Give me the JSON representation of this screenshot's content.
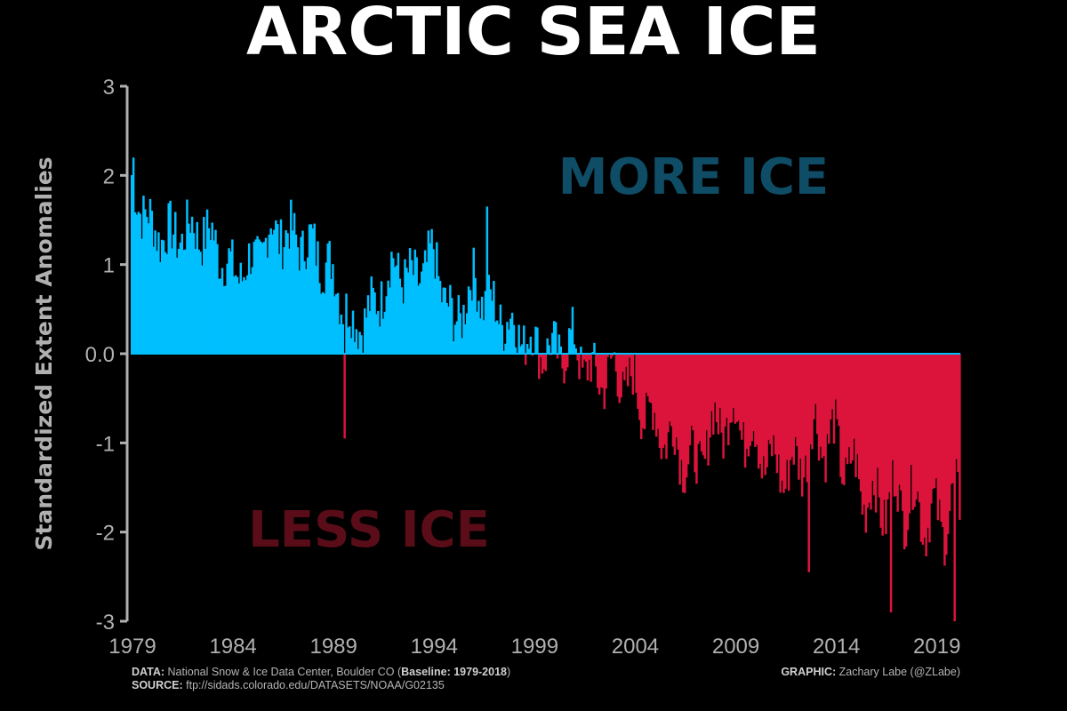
{
  "title": "ARCTIC SEA ICE",
  "annotations": {
    "more": "MORE ICE",
    "less": "LESS ICE"
  },
  "colors": {
    "background": "#000000",
    "positive": "#00bfff",
    "negative": "#dc143c",
    "more_text": "#0f4d66",
    "less_text": "#5a0d18",
    "axis": "#b0b0b0"
  },
  "credits": {
    "data_label": "DATA:",
    "data_text": "National Snow & Ice Data Center, Boulder CO (",
    "baseline_label": "Baseline: 1979-2018",
    "data_close": ")",
    "source_label": "SOURCE:",
    "source_text": "ftp://sidads.colorado.edu/DATASETS/NOAA/G02135",
    "graphic_label": "GRAPHIC:",
    "graphic_text": "Zachary Labe (@ZLabe)"
  },
  "chart_data": {
    "type": "bar",
    "ylabel": "Standardized Extent Anomalies",
    "xlabel": "",
    "ylim": [
      -3,
      3
    ],
    "xlim": [
      1979,
      2020.25
    ],
    "yticks": [
      3,
      2,
      1,
      0,
      -1,
      -2,
      -3
    ],
    "ytick_labels": [
      "3",
      "2",
      "1",
      "0.0",
      "-1",
      "-2",
      "-3"
    ],
    "xticks": [
      1979,
      1984,
      1989,
      1994,
      1999,
      2004,
      2009,
      2014,
      2019
    ],
    "frequency": "monthly",
    "start": "1979-01",
    "end": "2020-03",
    "yearly_anchor_values": {
      "1979": 1.9,
      "1980": 1.4,
      "1981": 1.3,
      "1982": 1.4,
      "1983": 1.3,
      "1984": 0.9,
      "1985": 1.0,
      "1986": 1.4,
      "1987": 1.3,
      "1988": 1.2,
      "1989": 0.9,
      "1990": 0.3,
      "1991": 0.5,
      "1992": 1.0,
      "1993": 0.8,
      "1994": 1.1,
      "1995": 0.3,
      "1996": 0.8,
      "1997": 0.5,
      "1998": 0.3,
      "1999": 0.1,
      "2000": 0.0,
      "2001": 0.1,
      "2002": -0.3,
      "2003": -0.2,
      "2004": -0.4,
      "2005": -0.8,
      "2006": -1.0,
      "2007": -1.3,
      "2008": -0.8,
      "2009": -0.7,
      "2010": -1.0,
      "2011": -1.3,
      "2012": -1.3,
      "2013": -0.9,
      "2014": -1.0,
      "2015": -1.4,
      "2016": -1.7,
      "2017": -1.6,
      "2018": -1.7,
      "2019": -1.9,
      "2020": -1.7
    },
    "notable_extremes": [
      {
        "date": "1979-02",
        "value": 2.2
      },
      {
        "date": "1989-08",
        "value": -0.95
      },
      {
        "date": "1996-09",
        "value": 1.65
      },
      {
        "date": "2012-09",
        "value": -2.45
      },
      {
        "date": "2016-10",
        "value": -2.9
      },
      {
        "date": "2019-12",
        "value": -3.0
      }
    ]
  }
}
